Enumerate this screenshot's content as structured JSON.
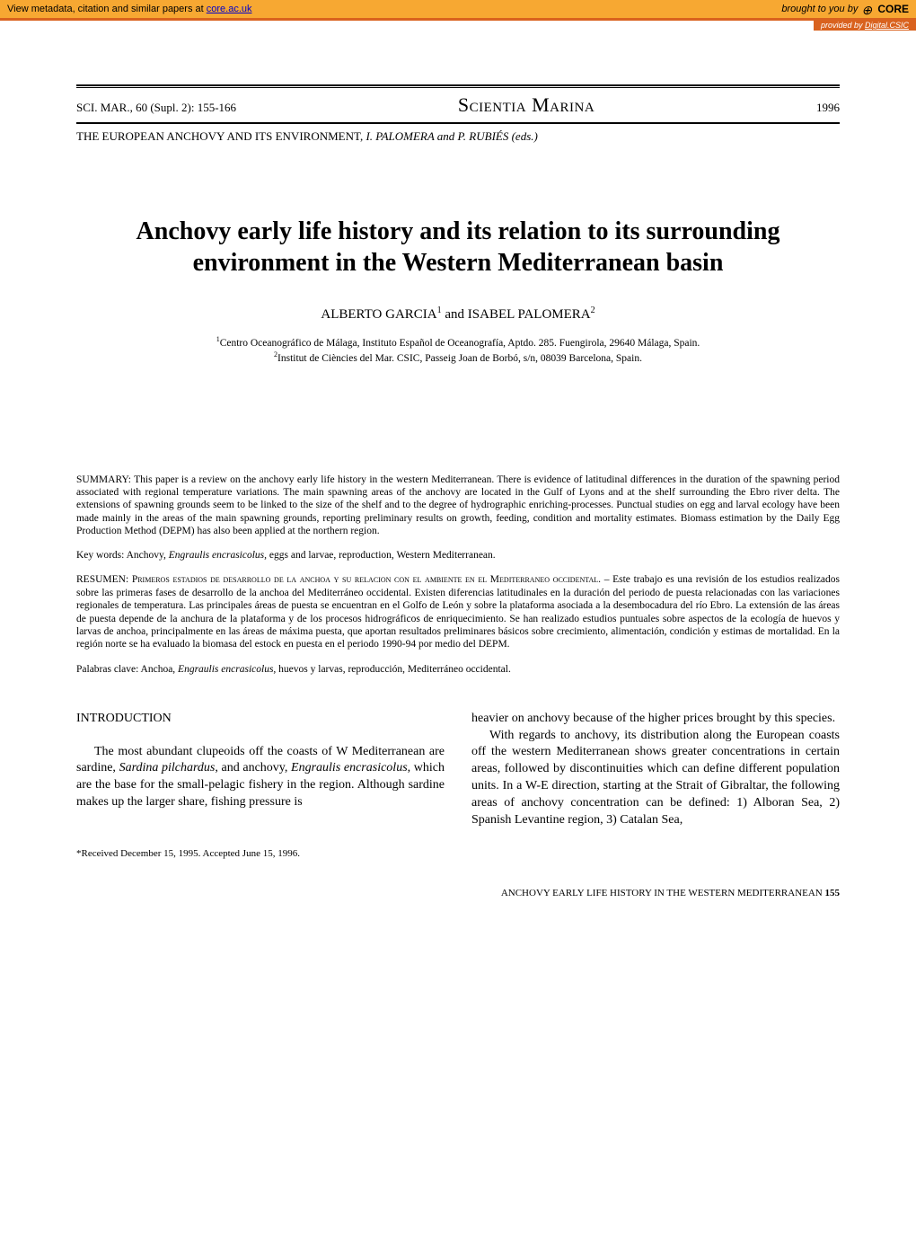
{
  "banner": {
    "metadata_text": "View metadata, citation and similar papers at ",
    "metadata_link": "core.ac.uk",
    "brought_by": "brought to you by ",
    "core_label": "CORE",
    "provided_by_prefix": "provided by ",
    "provided_by_link": "Digital.CSIC"
  },
  "header": {
    "citation": "SCI. MAR., 60 (Supl. 2): 155-166",
    "journal": "Scientia Marina",
    "year": "1996",
    "conference_prefix": "THE EUROPEAN ANCHOVY AND ITS ENVIRONMENT, ",
    "conference_editors": "I. PALOMERA and P. RUBIÉS (eds.)"
  },
  "title": "Anchovy early life history and its relation to its surrounding environment in the Western Mediterranean basin",
  "authors": {
    "author1": "ALBERTO GARCIA",
    "sup1": "1",
    "and": " and ",
    "author2": "ISABEL PALOMERA",
    "sup2": "2"
  },
  "affiliations": {
    "aff1_sup": "1",
    "aff1": "Centro Oceanográfico de Málaga, Instituto Español de Oceanografía, Aptdo. 285. Fuengirola, 29640 Málaga, Spain.",
    "aff2_sup": "2",
    "aff2": "Institut de Ciències del Mar. CSIC, Passeig Joan de Borbó, s/n, 08039 Barcelona, Spain."
  },
  "summary": {
    "label": "SUMMARY: ",
    "text": "This paper is a review on the anchovy early life history in the western Mediterranean. There is evidence of latitudinal differences in the duration of the spawning period associated with regional temperature variations. The main spawning areas of the anchovy are located in the Gulf of Lyons and at the shelf surrounding the Ebro river delta. The extensions of spawning grounds seem to be linked to the size of the shelf and to the degree of hydrographic enriching-processes. Punctual studies on egg and larval ecology have been made mainly in the areas of the main spawning grounds, reporting preliminary results on growth, feeding, condition and mortality estimates. Biomass estimation by the Daily Egg Production Method (DEPM) has also been applied at the northern region."
  },
  "keywords_en": {
    "label": "Key words: ",
    "text_pre": "Anchovy, ",
    "species": "Engraulis encrasicolus,",
    "text_post": " eggs and larvae, reproduction, Western Mediterranean."
  },
  "resumen": {
    "label": "RESUMEN: ",
    "title_sc": "Primeros estadios de desarrollo de la anchoa y su relacion con el ambiente en el Mediterraneo occidental.",
    "text": " – Este trabajo es una revisión de los estudios realizados sobre las primeras fases de desarrollo de la anchoa del Mediterráneo occidental. Existen diferencias latitudinales en la duración del periodo de puesta relacionadas con las variaciones regionales de temperatura. Las principales áreas de puesta se encuentran en el Golfo de León y sobre la plataforma asociada a la desembocadura del río Ebro. La extensión de las áreas de puesta depende de la anchura de la plataforma y de los procesos hidrográficos de enriquecimiento. Se han realizado estudios puntuales sobre aspectos de la ecología de huevos y larvas de anchoa, principalmente en las áreas de máxima puesta, que aportan resultados preliminares básicos sobre crecimiento, alimentación, condición y estimas de mortalidad. En la región norte se ha evaluado la biomasa del estock en puesta en el periodo 1990-94 por medio del DEPM."
  },
  "keywords_es": {
    "label": "Palabras clave: ",
    "text_pre": "Anchoa, ",
    "species": "Engraulis encrasicolus,",
    "text_post": " huevos y larvas, reproducción, Mediterráneo occidental."
  },
  "body": {
    "intro_heading": "INTRODUCTION",
    "col1_p1_pre": "The most abundant clupeoids off the coasts of W Mediterranean are sardine, ",
    "col1_p1_sp1": "Sardina pilchardus",
    "col1_p1_mid": ", and anchovy, ",
    "col1_p1_sp2": "Engraulis encrasicolus",
    "col1_p1_post": ", which are the base for the small-pelagic fishery in the region. Although sardine makes up the larger share, fishing pressure is",
    "col2_p1": "heavier on anchovy because of the higher prices brought by this species.",
    "col2_p2": "With regards to anchovy, its distribution along the European coasts off the western Mediterranean shows greater concentrations in certain areas, followed by discontinuities which can define different population units. In a W-E direction, starting at the Strait of Gibraltar, the following areas of anchovy concentration can be defined: 1) Alboran Sea, 2) Spanish Levantine region, 3) Catalan Sea,"
  },
  "footnote": "*Received December 15, 1995. Accepted June 15, 1996.",
  "footer": {
    "running_head": "ANCHOVY EARLY LIFE HISTORY IN THE WESTERN MEDITERRANEAN  ",
    "page_num": "155"
  },
  "colors": {
    "banner_bg": "#f7a832",
    "subbanner_bg": "#d9621e",
    "link": "#0000cc"
  }
}
